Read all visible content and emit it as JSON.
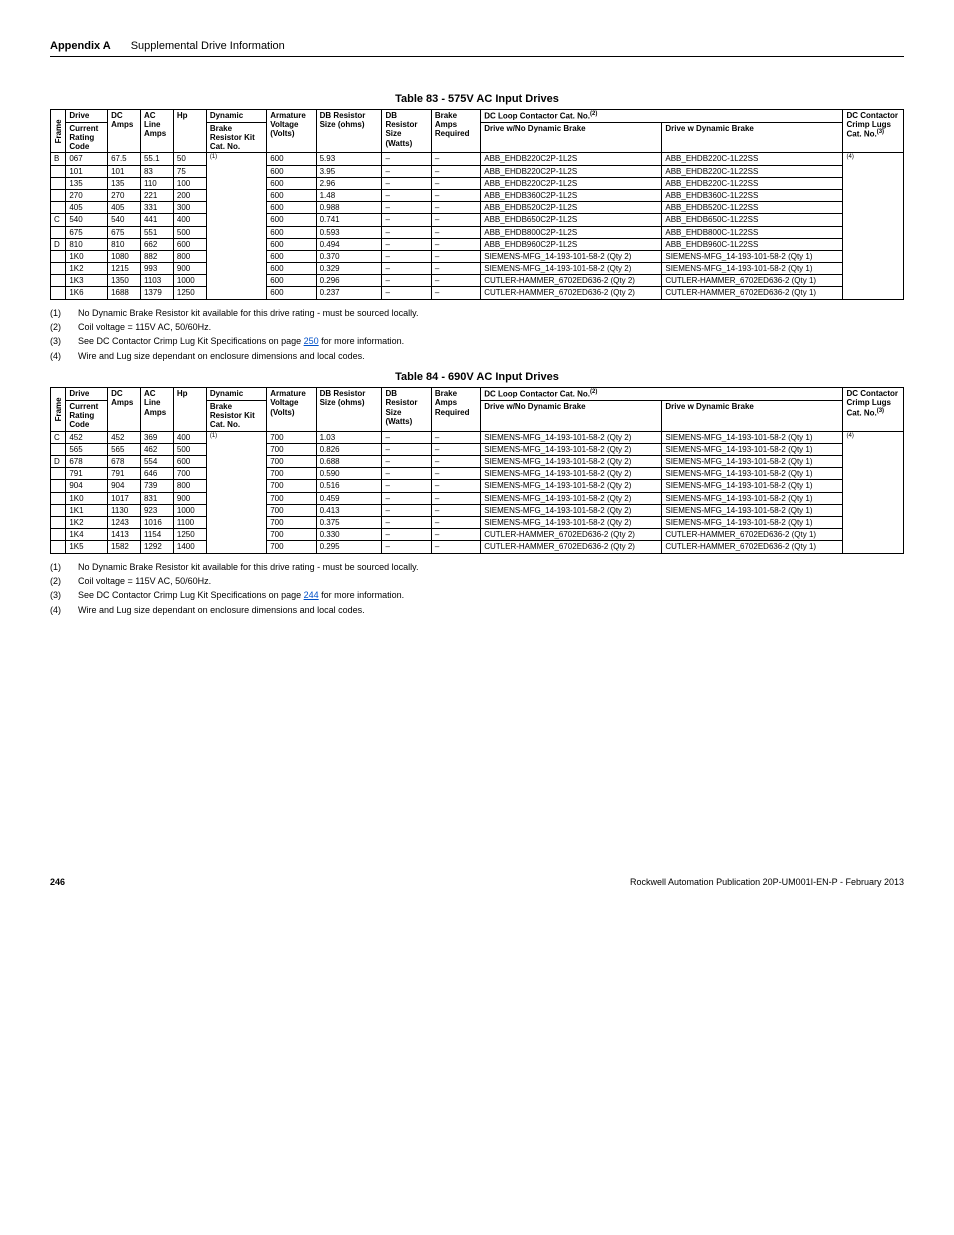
{
  "header": {
    "appendix": "Appendix A",
    "title": "Supplemental Drive Information"
  },
  "table83": {
    "title": "Table 83 - 575V AC Input Drives",
    "cols": {
      "frame": "Frame",
      "drive": "Drive",
      "current": "Current Rating Code",
      "dc": "DC Amps",
      "ac": "AC Line Amps",
      "hp": "Hp",
      "dyn": "Dynamic Brake Resistor Kit Cat. No.",
      "arm": "Armature Voltage (Volts)",
      "dbr": "DB Resistor Size (ohms)",
      "db": "DB Resistor Size (Watts)",
      "brake": "Brake Amps Required",
      "loop": "DC Loop Contactor Cat. No.",
      "nodyn": "Drive w/No Dynamic Brake",
      "wdyn": "Drive w Dynamic Brake",
      "dccon": "DC Contactor Crimp Lugs Cat. No.",
      "sup2": "(2)",
      "sup3": "(3)",
      "note1": "(1)",
      "note4": "(4)"
    },
    "rows": [
      {
        "frame": "B",
        "code": "067",
        "dc": "67.5",
        "ac": "55.1",
        "hp": "50",
        "arm": "600",
        "dbr": "5.93",
        "db": "–",
        "brk": "–",
        "nd": "ABB_EHDB220C2P-1L2S",
        "wd": "ABB_EHDB220C-1L22SS"
      },
      {
        "frame": "",
        "code": "101",
        "dc": "101",
        "ac": "83",
        "hp": "75",
        "arm": "600",
        "dbr": "3.95",
        "db": "–",
        "brk": "–",
        "nd": "ABB_EHDB220C2P-1L2S",
        "wd": "ABB_EHDB220C-1L22SS"
      },
      {
        "frame": "",
        "code": "135",
        "dc": "135",
        "ac": "110",
        "hp": "100",
        "arm": "600",
        "dbr": "2.96",
        "db": "–",
        "brk": "–",
        "nd": "ABB_EHDB220C2P-1L2S",
        "wd": "ABB_EHDB220C-1L22SS"
      },
      {
        "frame": "",
        "code": "270",
        "dc": "270",
        "ac": "221",
        "hp": "200",
        "arm": "600",
        "dbr": "1.48",
        "db": "–",
        "brk": "–",
        "nd": "ABB_EHDB360C2P-1L2S",
        "wd": "ABB_EHDB360C-1L22SS"
      },
      {
        "frame": "",
        "code": "405",
        "dc": "405",
        "ac": "331",
        "hp": "300",
        "arm": "600",
        "dbr": "0.988",
        "db": "–",
        "brk": "–",
        "nd": "ABB_EHDB520C2P-1L2S",
        "wd": "ABB_EHDB520C-1L22SS"
      },
      {
        "frame": "C",
        "code": "540",
        "dc": "540",
        "ac": "441",
        "hp": "400",
        "arm": "600",
        "dbr": "0.741",
        "db": "–",
        "brk": "–",
        "nd": "ABB_EHDB650C2P-1L2S",
        "wd": "ABB_EHDB650C-1L22SS"
      },
      {
        "frame": "",
        "code": "675",
        "dc": "675",
        "ac": "551",
        "hp": "500",
        "arm": "600",
        "dbr": "0.593",
        "db": "–",
        "brk": "–",
        "nd": "ABB_EHDB800C2P-1L2S",
        "wd": "ABB_EHDB800C-1L22SS"
      },
      {
        "frame": "D",
        "code": "810",
        "dc": "810",
        "ac": "662",
        "hp": "600",
        "arm": "600",
        "dbr": "0.494",
        "db": "–",
        "brk": "–",
        "nd": "ABB_EHDB960C2P-1L2S",
        "wd": "ABB_EHDB960C-1L22SS"
      },
      {
        "frame": "",
        "code": "1K0",
        "dc": "1080",
        "ac": "882",
        "hp": "800",
        "arm": "600",
        "dbr": "0.370",
        "db": "–",
        "brk": "–",
        "nd": "SIEMENS-MFG_14-193-101-58-2 (Qty 2)",
        "wd": "SIEMENS-MFG_14-193-101-58-2 (Qty 1)"
      },
      {
        "frame": "",
        "code": "1K2",
        "dc": "1215",
        "ac": "993",
        "hp": "900",
        "arm": "600",
        "dbr": "0.329",
        "db": "–",
        "brk": "–",
        "nd": "SIEMENS-MFG_14-193-101-58-2 (Qty 2)",
        "wd": "SIEMENS-MFG_14-193-101-58-2 (Qty 1)"
      },
      {
        "frame": "",
        "code": "1K3",
        "dc": "1350",
        "ac": "1103",
        "hp": "1000",
        "arm": "600",
        "dbr": "0.296",
        "db": "–",
        "brk": "–",
        "nd": "CUTLER-HAMMER_6702ED636-2 (Qty 2)",
        "wd": "CUTLER-HAMMER_6702ED636-2 (Qty 1)"
      },
      {
        "frame": "",
        "code": "1K6",
        "dc": "1688",
        "ac": "1379",
        "hp": "1250",
        "arm": "600",
        "dbr": "0.237",
        "db": "–",
        "brk": "–",
        "nd": "CUTLER-HAMMER_6702ED636-2 (Qty 2)",
        "wd": "CUTLER-HAMMER_6702ED636-2 (Qty 1)"
      }
    ]
  },
  "footnotes83": {
    "f1": "No Dynamic Brake Resistor kit available for this drive rating - must be sourced locally.",
    "f2": "Coil voltage = 115V AC, 50/60Hz.",
    "f3a": "See DC Contactor Crimp Lug Kit Specifications on page ",
    "f3link": "250",
    "f3b": " for more information.",
    "f4": "Wire and Lug size dependant on enclosure dimensions and local codes."
  },
  "table84": {
    "title": "Table 84 - 690V AC Input Drives",
    "rows": [
      {
        "frame": "C",
        "code": "452",
        "dc": "452",
        "ac": "369",
        "hp": "400",
        "arm": "700",
        "dbr": "1.03",
        "db": "–",
        "brk": "–",
        "nd": "SIEMENS-MFG_14-193-101-58-2 (Qty 2)",
        "wd": "SIEMENS-MFG_14-193-101-58-2 (Qty 1)"
      },
      {
        "frame": "",
        "code": "565",
        "dc": "565",
        "ac": "462",
        "hp": "500",
        "arm": "700",
        "dbr": "0.826",
        "db": "–",
        "brk": "–",
        "nd": "SIEMENS-MFG_14-193-101-58-2 (Qty 2)",
        "wd": "SIEMENS-MFG_14-193-101-58-2 (Qty 1)"
      },
      {
        "frame": "D",
        "code": "678",
        "dc": "678",
        "ac": "554",
        "hp": "600",
        "arm": "700",
        "dbr": "0.688",
        "db": "–",
        "brk": "–",
        "nd": "SIEMENS-MFG_14-193-101-58-2 (Qty 2)",
        "wd": "SIEMENS-MFG_14-193-101-58-2 (Qty 1)"
      },
      {
        "frame": "",
        "code": "791",
        "dc": "791",
        "ac": "646",
        "hp": "700",
        "arm": "700",
        "dbr": "0.590",
        "db": "–",
        "brk": "–",
        "nd": "SIEMENS-MFG_14-193-101-58-2 (Qty 2)",
        "wd": "SIEMENS-MFG_14-193-101-58-2 (Qty 1)"
      },
      {
        "frame": "",
        "code": "904",
        "dc": "904",
        "ac": "739",
        "hp": "800",
        "arm": "700",
        "dbr": "0.516",
        "db": "–",
        "brk": "–",
        "nd": "SIEMENS-MFG_14-193-101-58-2 (Qty 2)",
        "wd": "SIEMENS-MFG_14-193-101-58-2 (Qty 1)"
      },
      {
        "frame": "",
        "code": "1K0",
        "dc": "1017",
        "ac": "831",
        "hp": "900",
        "arm": "700",
        "dbr": "0.459",
        "db": "–",
        "brk": "–",
        "nd": "SIEMENS-MFG_14-193-101-58-2 (Qty 2)",
        "wd": "SIEMENS-MFG_14-193-101-58-2 (Qty 1)"
      },
      {
        "frame": "",
        "code": "1K1",
        "dc": "1130",
        "ac": "923",
        "hp": "1000",
        "arm": "700",
        "dbr": "0.413",
        "db": "–",
        "brk": "–",
        "nd": "SIEMENS-MFG_14-193-101-58-2 (Qty 2)",
        "wd": "SIEMENS-MFG_14-193-101-58-2 (Qty 1)"
      },
      {
        "frame": "",
        "code": "1K2",
        "dc": "1243",
        "ac": "1016",
        "hp": "1100",
        "arm": "700",
        "dbr": "0.375",
        "db": "–",
        "brk": "–",
        "nd": "SIEMENS-MFG_14-193-101-58-2 (Qty 2)",
        "wd": "SIEMENS-MFG_14-193-101-58-2 (Qty 1)"
      },
      {
        "frame": "",
        "code": "1K4",
        "dc": "1413",
        "ac": "1154",
        "hp": "1250",
        "arm": "700",
        "dbr": "0.330",
        "db": "–",
        "brk": "–",
        "nd": "CUTLER-HAMMER_6702ED636-2 (Qty 2)",
        "wd": "CUTLER-HAMMER_6702ED636-2 (Qty 1)"
      },
      {
        "frame": "",
        "code": "1K5",
        "dc": "1582",
        "ac": "1292",
        "hp": "1400",
        "arm": "700",
        "dbr": "0.295",
        "db": "–",
        "brk": "–",
        "nd": "CUTLER-HAMMER_6702ED636-2 (Qty 2)",
        "wd": "CUTLER-HAMMER_6702ED636-2 (Qty 1)"
      }
    ]
  },
  "footnotes84": {
    "f1": "No Dynamic Brake Resistor kit available for this drive rating - must be sourced locally.",
    "f2": "Coil voltage = 115V AC, 50/60Hz.",
    "f3a": "See DC Contactor Crimp Lug Kit Specifications on page ",
    "f3link": "244",
    "f3b": " for more information.",
    "f4": "Wire and Lug size dependant on enclosure dimensions and local codes."
  },
  "footer": {
    "page": "246",
    "pub": "Rockwell Automation Publication 20P-UM001I-EN-P - February 2013"
  },
  "labels": {
    "n1": "(1)",
    "n2": "(2)",
    "n3": "(3)",
    "n4": "(4)"
  }
}
